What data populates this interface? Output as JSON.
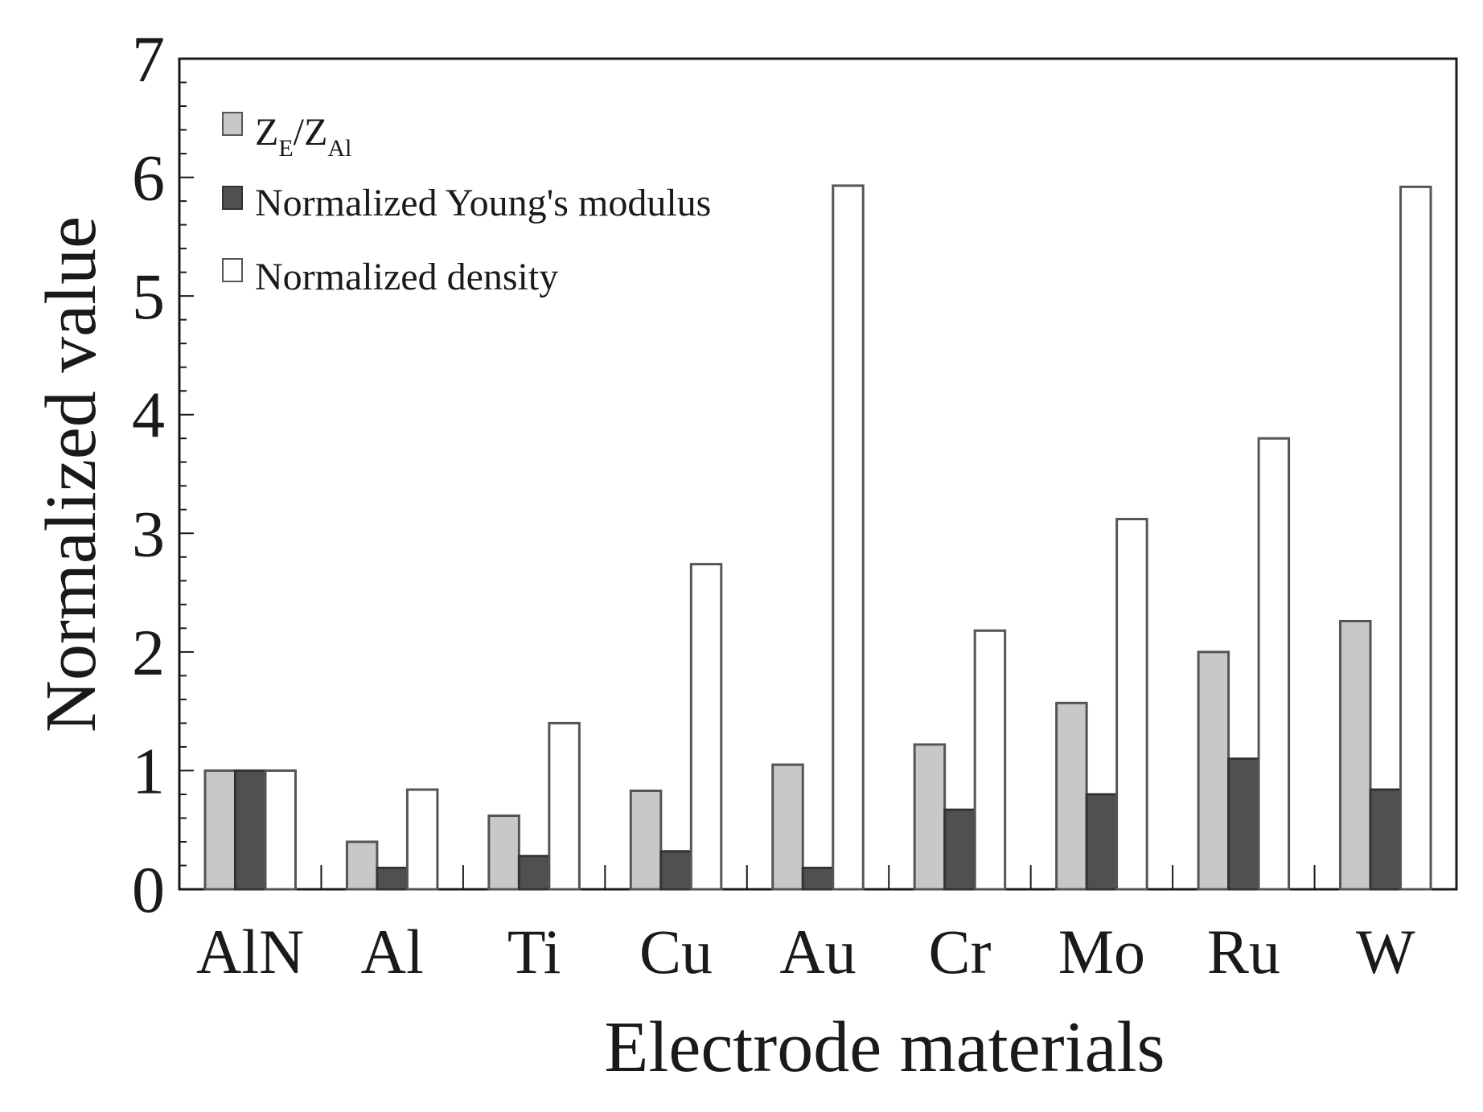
{
  "chart_data": {
    "type": "bar",
    "title": "",
    "xlabel": "Electrode materials",
    "ylabel": "Normalized value",
    "ylim": [
      0,
      7
    ],
    "yticks": [
      "0",
      "1",
      "2",
      "3",
      "4",
      "5",
      "6",
      "7"
    ],
    "categories": [
      "AlN",
      "Al",
      "Ti",
      "Cu",
      "Au",
      "Cr",
      "Mo",
      "Ru",
      "W"
    ],
    "series": [
      {
        "name": "ZE/ZAl",
        "legend_main": "Z",
        "legend_sub1": "E",
        "legend_mid": "/Z",
        "legend_sub2": "Al",
        "color": "#c8c8c8",
        "values": [
          1.0,
          0.4,
          0.62,
          0.83,
          1.05,
          1.22,
          1.57,
          2.0,
          2.26
        ]
      },
      {
        "name": "Normalized Young's modulus",
        "color": "#505050",
        "values": [
          1.0,
          0.18,
          0.28,
          0.32,
          0.18,
          0.67,
          0.8,
          1.1,
          0.84
        ]
      },
      {
        "name": "Normalized density",
        "color": "#ffffff",
        "values": [
          1.0,
          0.84,
          1.4,
          2.74,
          5.93,
          2.18,
          3.12,
          3.8,
          5.92
        ]
      }
    ],
    "legend_position": "top-left",
    "grid": false
  }
}
